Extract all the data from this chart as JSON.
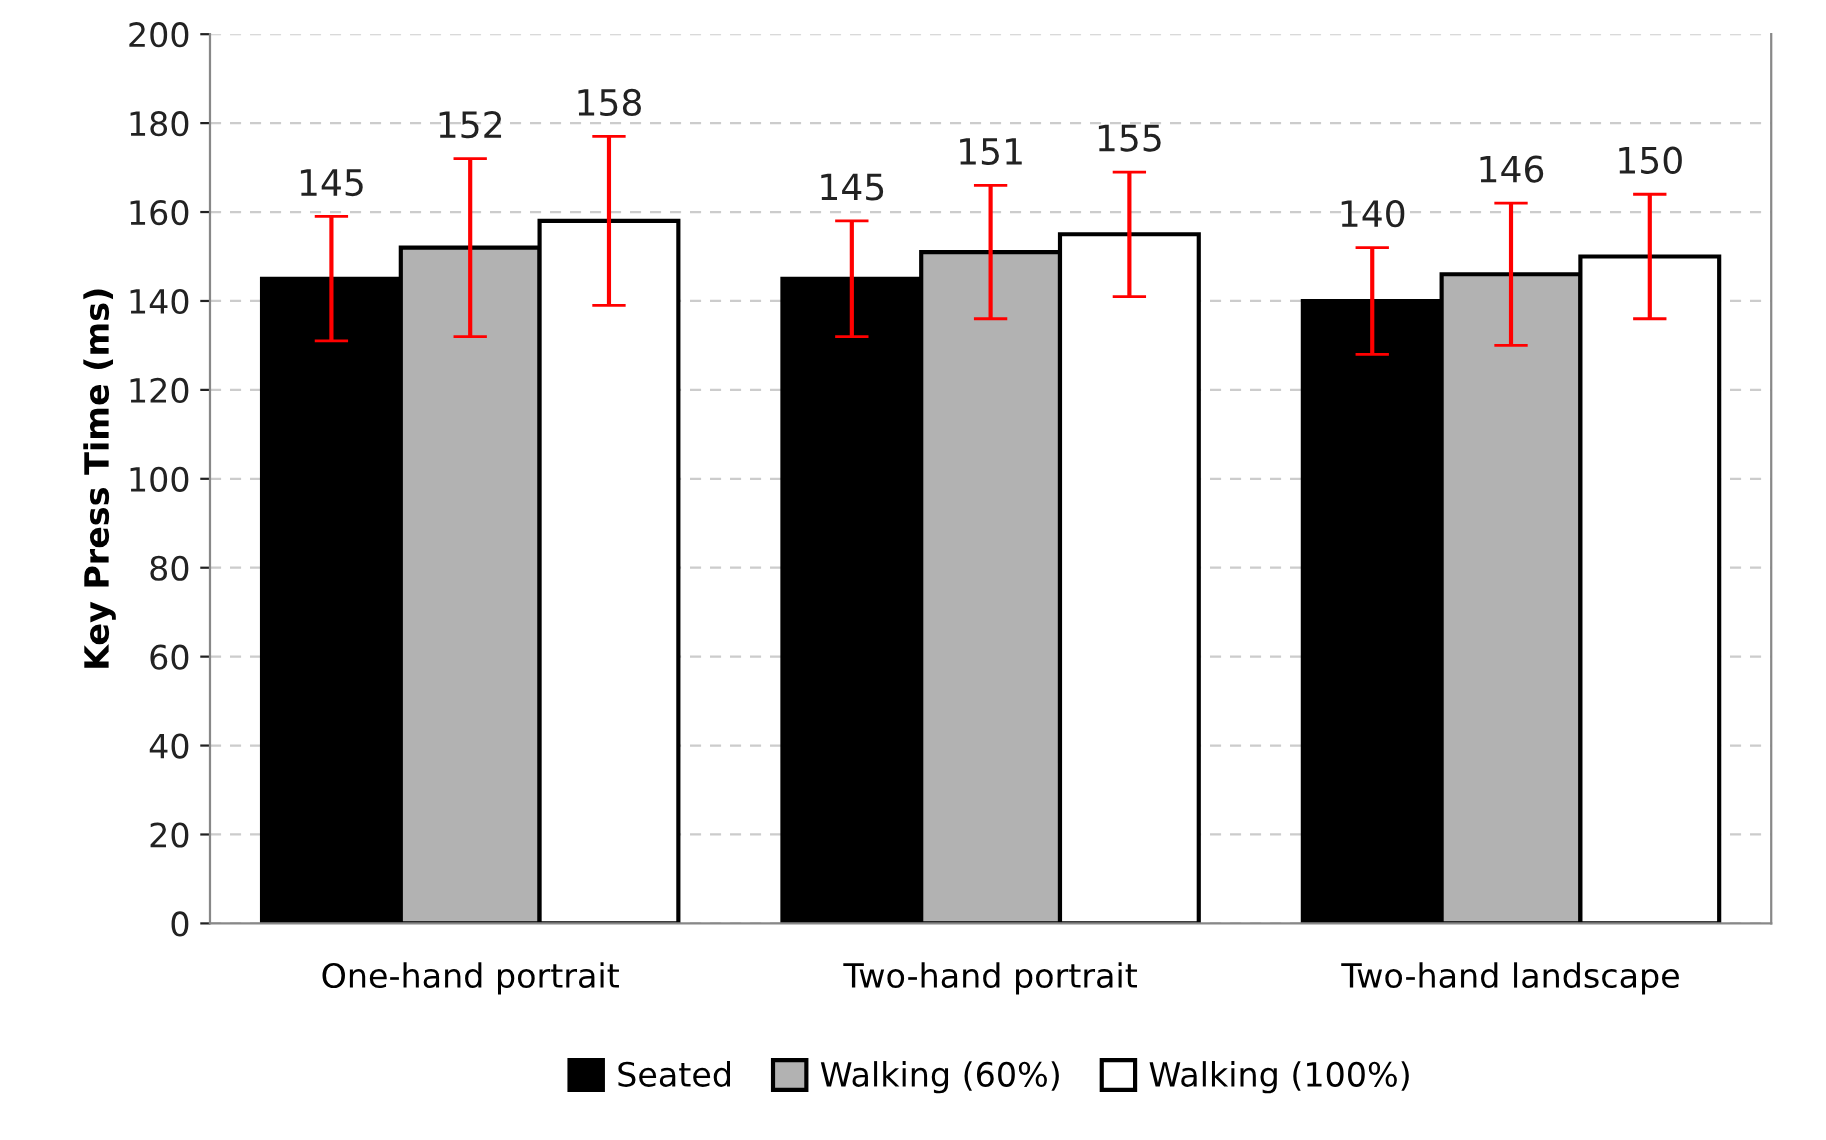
{
  "chart_data": {
    "type": "bar",
    "ylabel": "Key Press Time (ms)",
    "categories": [
      "One-hand portrait",
      "Two-hand portrait",
      "Two-hand landscape"
    ],
    "series": [
      {
        "name": "Seated",
        "color": "#000000",
        "values": [
          145,
          145,
          140
        ],
        "errors": [
          14,
          13,
          12
        ]
      },
      {
        "name": "Walking (60%)",
        "color": "#b2b2b2",
        "values": [
          152,
          151,
          146
        ],
        "errors": [
          20,
          15,
          16
        ]
      },
      {
        "name": "Walking (100%)",
        "color": "#ffffff",
        "values": [
          158,
          155,
          150
        ],
        "errors": [
          19,
          14,
          14
        ]
      }
    ],
    "ylim": [
      0,
      200
    ],
    "yticks": [
      0,
      20,
      40,
      60,
      80,
      100,
      120,
      140,
      160,
      180,
      200
    ],
    "grid": "y",
    "legend": "bottom",
    "data_labels": true
  }
}
